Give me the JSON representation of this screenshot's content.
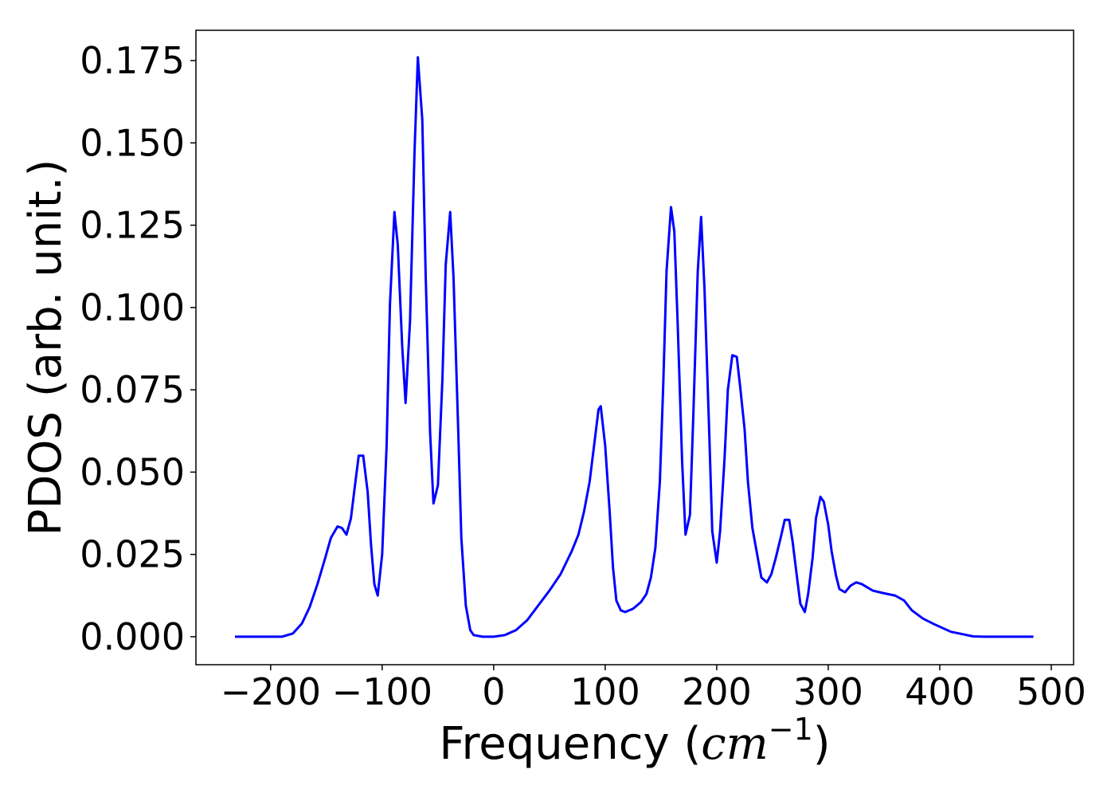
{
  "chart_data": {
    "type": "line",
    "xlabel": [
      "Frequency (",
      "cm",
      "−1",
      ")"
    ],
    "ylabel": "PDOS (arb. unit.)",
    "color": "#0000ff",
    "x": [
      -232,
      -190,
      -180,
      -172,
      -165,
      -158,
      -151,
      -146,
      -140,
      -136,
      -132,
      -128,
      -124,
      -121,
      -117,
      -113,
      -110,
      -107,
      -104,
      -100,
      -96,
      -93,
      -89,
      -86,
      -82,
      -79,
      -75,
      -71,
      -68,
      -64,
      -61,
      -57,
      -54,
      -50,
      -46,
      -43,
      -39,
      -36,
      -32,
      -29,
      -25,
      -21,
      -18,
      -10,
      0,
      10,
      20,
      30,
      40,
      50,
      60,
      70,
      76,
      81,
      86,
      90,
      94,
      96,
      100,
      104,
      107,
      110,
      114,
      118,
      125,
      132,
      137,
      141,
      145,
      149,
      152,
      155,
      159,
      162,
      165,
      169,
      172,
      176,
      179,
      183,
      186,
      189,
      193,
      196,
      200,
      203,
      207,
      210,
      214,
      218,
      221,
      225,
      228,
      232,
      236,
      240,
      245,
      249,
      253,
      258,
      261,
      265,
      268,
      272,
      275,
      279,
      282,
      286,
      289,
      293,
      296,
      300,
      303,
      307,
      310,
      315,
      320,
      325,
      330,
      340,
      350,
      360,
      368,
      375,
      385,
      395,
      410,
      420,
      430,
      440,
      484
    ],
    "values": [
      0,
      0,
      0.001,
      0.004,
      0.009,
      0.016,
      0.024,
      0.03,
      0.0335,
      0.033,
      0.031,
      0.036,
      0.047,
      0.055,
      0.055,
      0.044,
      0.028,
      0.016,
      0.0125,
      0.025,
      0.058,
      0.101,
      0.129,
      0.119,
      0.088,
      0.071,
      0.096,
      0.147,
      0.176,
      0.157,
      0.11,
      0.062,
      0.0405,
      0.046,
      0.078,
      0.113,
      0.129,
      0.109,
      0.065,
      0.03,
      0.0095,
      0.002,
      0.0005,
      0,
      0,
      0.0005,
      0.002,
      0.005,
      0.0095,
      0.014,
      0.019,
      0.026,
      0.031,
      0.038,
      0.047,
      0.058,
      0.069,
      0.07,
      0.058,
      0.038,
      0.021,
      0.011,
      0.008,
      0.0075,
      0.0085,
      0.0105,
      0.013,
      0.018,
      0.027,
      0.047,
      0.076,
      0.111,
      0.1305,
      0.123,
      0.095,
      0.053,
      0.031,
      0.037,
      0.067,
      0.111,
      0.1275,
      0.106,
      0.065,
      0.032,
      0.0225,
      0.032,
      0.054,
      0.075,
      0.0855,
      0.085,
      0.076,
      0.063,
      0.047,
      0.033,
      0.0255,
      0.018,
      0.0165,
      0.019,
      0.024,
      0.031,
      0.0355,
      0.0355,
      0.029,
      0.018,
      0.01,
      0.0075,
      0.013,
      0.024,
      0.036,
      0.0425,
      0.041,
      0.034,
      0.026,
      0.0185,
      0.0145,
      0.0135,
      0.0155,
      0.0165,
      0.016,
      0.014,
      0.0132,
      0.0125,
      0.011,
      0.008,
      0.0055,
      0.0038,
      0.0015,
      0.0008,
      0.0001,
      0,
      0
    ],
    "xlim": [
      -267,
      520
    ],
    "ylim": [
      -0.0085,
      0.1842
    ],
    "xticks": [
      {
        "value": -200,
        "label": "−200"
      },
      {
        "value": -100,
        "label": "−100"
      },
      0,
      100,
      200,
      300,
      400,
      500
    ],
    "yticks": [
      {
        "value": 0,
        "label": "0.000"
      },
      0.025,
      {
        "value": 0.05,
        "label": "0.050"
      },
      0.075,
      {
        "value": 0.1,
        "label": "0.100"
      },
      0.125,
      {
        "value": 0.15,
        "label": "0.150"
      },
      0.175
    ],
    "grid": false
  }
}
